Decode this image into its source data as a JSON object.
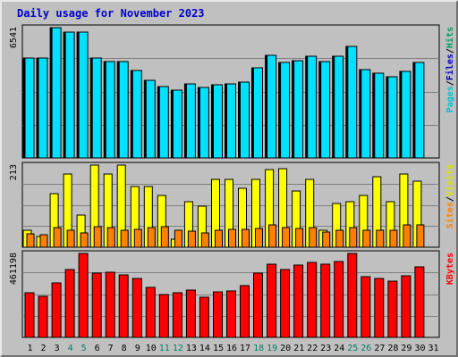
{
  "chart_data": {
    "title": "Daily usage for November 2023",
    "type": "bar",
    "x": [
      "1",
      "2",
      "3",
      "4",
      "5",
      "6",
      "7",
      "8",
      "9",
      "10",
      "11",
      "12",
      "13",
      "14",
      "15",
      "16",
      "17",
      "18",
      "19",
      "20",
      "21",
      "22",
      "23",
      "24",
      "25",
      "26",
      "27",
      "28",
      "29",
      "30",
      "31"
    ],
    "weekend_days": [
      "4",
      "5",
      "11",
      "12",
      "18",
      "19",
      "25",
      "26"
    ],
    "panels": [
      {
        "id": "hits-panel",
        "max_label": "6541",
        "ymax": 6541,
        "axis_title": [
          {
            "text": "Pages",
            "color": "#00c0d0"
          },
          {
            "text": "Files",
            "color": "#0000cc"
          },
          {
            "text": "Hits",
            "color": "#00a060"
          }
        ],
        "series": [
          {
            "name": "Hits",
            "color": "#008040",
            "values": [
              5030,
              5030,
              6541,
              6330,
              6330,
              5000,
              4830,
              4830,
              4380,
              3890,
              3570,
              3420,
              3720,
              3550,
              3660,
              3730,
              3830,
              4510,
              5130,
              4810,
              4900,
              5120,
              4830,
              5120,
              5620,
              4430,
              4270,
              4080,
              4360,
              4800,
              0
            ]
          },
          {
            "name": "Files",
            "color": "#0000cc",
            "values": [
              5030,
              5030,
              6541,
              6330,
              6330,
              5000,
              4830,
              4830,
              4380,
              3890,
              3570,
              3420,
              3720,
              3550,
              3660,
              3730,
              3830,
              4510,
              5130,
              4810,
              4900,
              5120,
              4830,
              5120,
              5620,
              4430,
              4270,
              4080,
              4360,
              4800,
              0
            ]
          },
          {
            "name": "Pages",
            "color": "#00e0ff",
            "values": [
              5030,
              5030,
              6541,
              6330,
              6330,
              5000,
              4830,
              4830,
              4380,
              3890,
              3570,
              3420,
              3720,
              3550,
              3660,
              3730,
              3830,
              4510,
              5130,
              4810,
              4900,
              5120,
              4830,
              5120,
              5620,
              4430,
              4270,
              4080,
              4360,
              4800,
              0
            ]
          }
        ]
      },
      {
        "id": "visits-panel",
        "max_label": "213",
        "ymax": 213,
        "axis_title": [
          {
            "text": "Sites",
            "color": "#ff8000"
          },
          {
            "text": "Visits",
            "color": "#e0e000"
          }
        ],
        "series": [
          {
            "name": "Visits",
            "color": "#ffff00",
            "values": [
              43,
              28,
              140,
              191,
              84,
              213,
              191,
              213,
              157,
              157,
              135,
              21,
              119,
              107,
              176,
              176,
              153,
              177,
              201,
              204,
              146,
              176,
              44,
              114,
              117,
              135,
              182,
              119,
              191,
              171,
              0
            ]
          },
          {
            "name": "Sites",
            "color": "#ff8000",
            "values": [
              35,
              32,
              50,
              45,
              38,
              53,
              52,
              45,
              47,
              50,
              53,
              45,
              41,
              37,
              44,
              47,
              46,
              49,
              57,
              51,
              48,
              52,
              39,
              45,
              50,
              45,
              43,
              45,
              57,
              58,
              0
            ]
          }
        ]
      },
      {
        "id": "kbytes-panel",
        "max_label": "461198",
        "ymax": 461198,
        "axis_title": [
          {
            "text": "KBytes",
            "color": "#ff0000"
          }
        ],
        "series": [
          {
            "name": "KBytes",
            "color": "#ff0000",
            "values": [
              247000,
              224000,
              300000,
              372000,
              461198,
              352000,
              356000,
              345000,
              324000,
              277000,
              236000,
              243000,
              262000,
              222000,
              252000,
              256000,
              286000,
              353000,
              402000,
              375000,
              397000,
              412000,
              404000,
              418000,
              461198,
              335000,
              322000,
              307000,
              337000,
              388000,
              0
            ]
          }
        ]
      }
    ]
  }
}
